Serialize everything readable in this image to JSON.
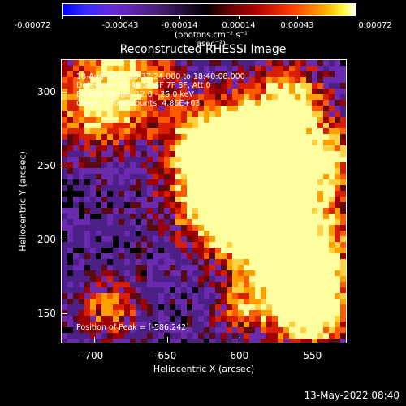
{
  "colorbar": {
    "ticks": [
      "-0.00072",
      "-0.00043",
      "-0.00014",
      "0.00014",
      "0.00043",
      "0.00072"
    ],
    "unit_label": "(photons cm⁻² s⁻¹ asec⁻²)"
  },
  "title": "Reconstructed RHESSI Image",
  "annotations": {
    "line1": "18-Aug-2011 18:37:24.000 to 18:40:08.000",
    "line2": "Detectors: 3F 4F 5F 6F 7F 8F, Att 0",
    "line3": "Energy Range: 12.0 - 25.0 keV",
    "line4": "Clean     Total counts: 4.86E+03",
    "peak": "Position of Peak = [-586,242]"
  },
  "axes": {
    "xlabel": "Heliocentric X (arcsec)",
    "ylabel": "Heliocentric Y (arcsec)",
    "xticks": [
      "-700",
      "-650",
      "-600",
      "-550"
    ],
    "yticks": [
      "300",
      "250",
      "200",
      "150"
    ]
  },
  "footer": "13-May-2022 08:40"
}
